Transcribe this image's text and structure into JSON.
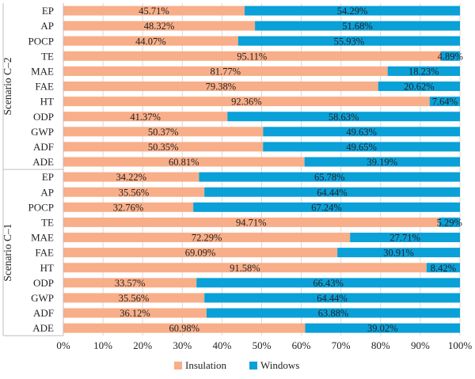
{
  "chart_data": {
    "type": "bar",
    "orientation": "horizontal",
    "stacked": true,
    "xlim": [
      0,
      100
    ],
    "x_ticks": [
      "0%",
      "10%",
      "20%",
      "30%",
      "40%",
      "50%",
      "60%",
      "70%",
      "80%",
      "90%",
      "100%"
    ],
    "legend": {
      "position": "bottom",
      "entries": [
        {
          "name": "Insulation",
          "color": "#f8ae88"
        },
        {
          "name": "Windows",
          "color": "#0aa0d8"
        }
      ]
    },
    "groups": [
      {
        "name": "Scenario C–2",
        "categories": [
          "EP",
          "AP",
          "POCP",
          "TE",
          "MAE",
          "FAE",
          "HT",
          "ODP",
          "GWP",
          "ADF",
          "ADE"
        ],
        "series": [
          {
            "name": "Insulation",
            "values": [
              45.71,
              48.32,
              44.07,
              95.11,
              81.77,
              79.38,
              92.36,
              41.37,
              50.37,
              50.35,
              60.81
            ],
            "labels": [
              "45.71%",
              "48.32%",
              "44.07%",
              "95.11%",
              "81.77%",
              "79.38%",
              "92.36%",
              "41.37%",
              "50.37%",
              "50.35%",
              "60.81%"
            ]
          },
          {
            "name": "Windows",
            "values": [
              54.29,
              51.68,
              55.93,
              4.89,
              18.23,
              20.62,
              7.64,
              58.63,
              49.63,
              49.65,
              39.19
            ],
            "labels": [
              "54.29%",
              "51.68%",
              "55.93%",
              "4.89%",
              "18.23%",
              "20.62%",
              "7.64%",
              "58.63%",
              "49.63%",
              "49.65%",
              "39.19%"
            ]
          }
        ]
      },
      {
        "name": "Scenario C–1",
        "categories": [
          "EP",
          "AP",
          "POCP",
          "TE",
          "MAE",
          "FAE",
          "HT",
          "ODP",
          "GWP",
          "ADF",
          "ADE"
        ],
        "series": [
          {
            "name": "Insulation",
            "values": [
              34.22,
              35.56,
              32.76,
              94.71,
              72.29,
              69.09,
              91.58,
              33.57,
              35.56,
              36.12,
              60.98
            ],
            "labels": [
              "34.22%",
              "35.56%",
              "32.76%",
              "94.71%",
              "72.29%",
              "69.09%",
              "91.58%",
              "33.57%",
              "35.56%",
              "36.12%",
              "60.98%"
            ]
          },
          {
            "name": "Windows",
            "values": [
              65.78,
              64.44,
              67.24,
              5.29,
              27.71,
              30.91,
              8.42,
              66.43,
              64.44,
              63.88,
              39.02
            ],
            "labels": [
              "65.78%",
              "64.44%",
              "67.24%",
              "5.29%",
              "27.71%",
              "30.91%",
              "8.42%",
              "66.43%",
              "64.44%",
              "63.88%",
              "39.02%"
            ]
          }
        ]
      }
    ]
  }
}
